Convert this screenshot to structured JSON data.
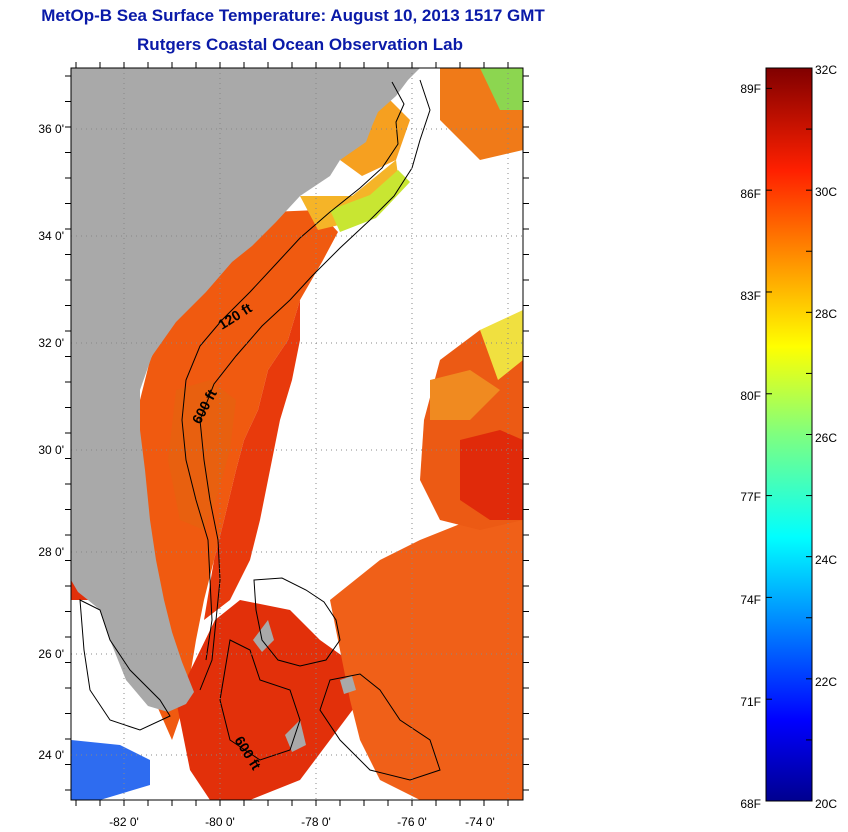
{
  "title": "MetOp-B Sea Surface Temperature:  August 10, 2013 1517 GMT",
  "subtitle": "Rutgers Coastal Ocean Observation Lab",
  "map": {
    "lat_ticks": [
      "36 0'",
      "34 0'",
      "32 0'",
      "30 0'",
      "28 0'",
      "26 0'",
      "24 0'"
    ],
    "lon_ticks": [
      "-82 0'",
      "-80 0'",
      "-78 0'",
      "-76 0'",
      "-74 0'"
    ],
    "contour_labels": [
      "120 ft",
      "600 ft",
      "600 ft"
    ],
    "colors": {
      "land": "#a9a9a9",
      "no_data": "#ffffff",
      "warm": "#f05a10",
      "hot": "#e0220a"
    }
  },
  "colorbar": {
    "fahrenheit_labels": [
      "89F",
      "86F",
      "83F",
      "80F",
      "77F",
      "74F",
      "71F",
      "68F"
    ],
    "celsius_labels": [
      "32C",
      "30C",
      "28C",
      "26C",
      "24C",
      "22C",
      "20C"
    ],
    "range_c": [
      20,
      32
    ],
    "colormap": "jet"
  }
}
